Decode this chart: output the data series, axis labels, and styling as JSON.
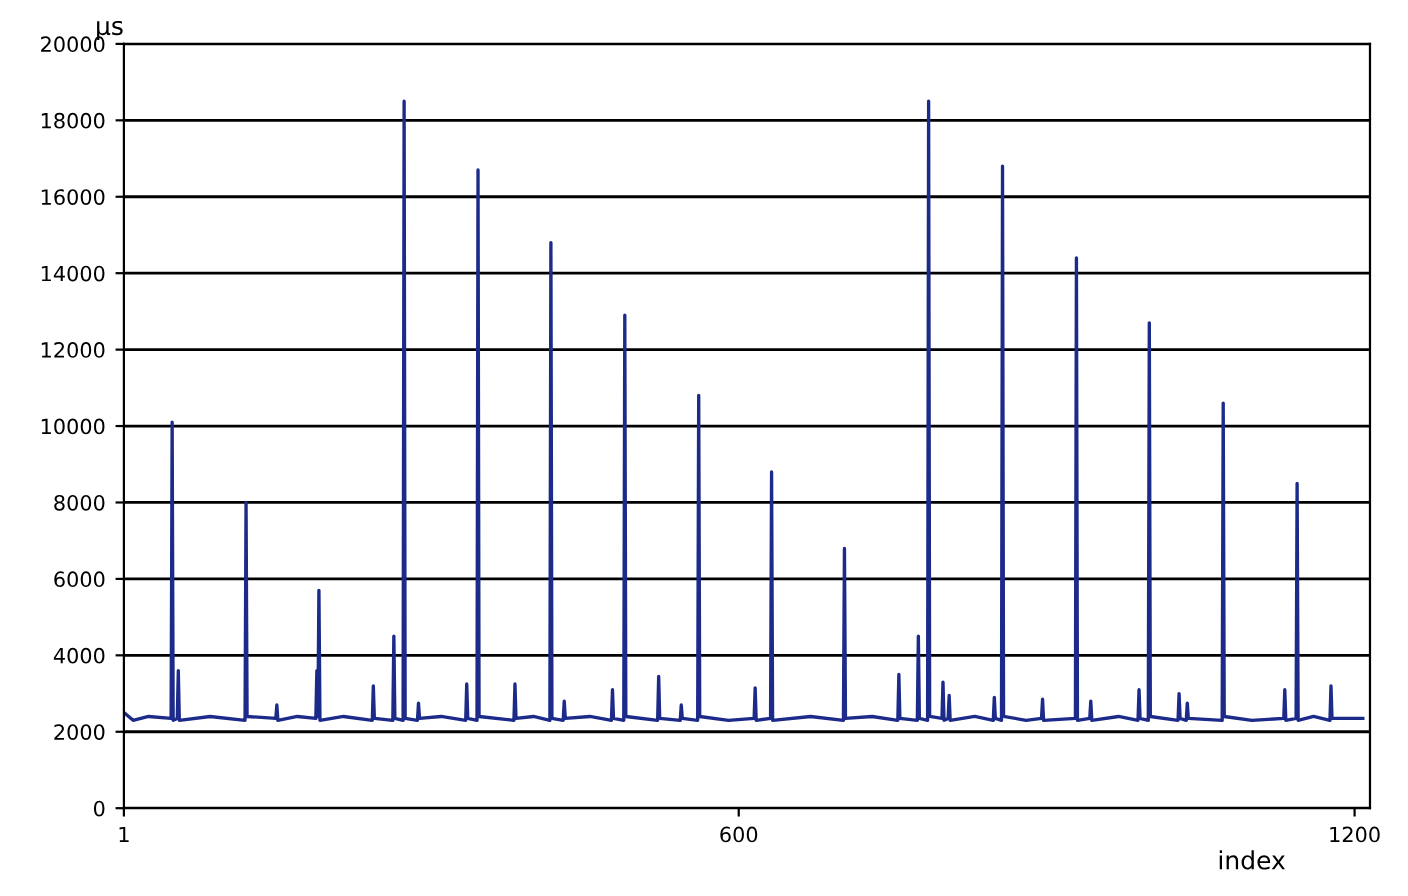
{
  "chart_data": {
    "type": "line",
    "xlabel": "index",
    "ylabel": "µs",
    "xlim": [
      1,
      1215
    ],
    "xticks": [
      1,
      600,
      1200
    ],
    "ylim": [
      0,
      20000
    ],
    "yticks": [
      0,
      2000,
      4000,
      6000,
      8000,
      10000,
      12000,
      14000,
      16000,
      18000,
      20000
    ],
    "grid": "y",
    "marker": "none",
    "line_style": "solid",
    "legend": false,
    "series": [
      {
        "color": "#1c2a8a",
        "x": [
          1,
          10,
          25,
          47,
          48,
          49,
          53,
          54,
          55,
          85,
          119,
          120,
          121,
          149,
          150,
          151,
          170,
          188,
          189,
          190,
          191,
          192,
          215,
          243,
          244,
          245,
          263,
          264,
          265,
          273,
          274,
          275,
          287,
          288,
          289,
          310,
          334,
          335,
          336,
          345,
          346,
          347,
          381,
          382,
          383,
          400,
          416,
          417,
          418,
          429,
          430,
          431,
          455,
          476,
          477,
          478,
          488,
          489,
          490,
          521,
          522,
          523,
          543,
          544,
          545,
          560,
          561,
          562,
          590,
          615,
          616,
          617,
          631,
          632,
          633,
          670,
          702,
          703,
          704,
          730,
          755,
          756,
          757,
          774,
          775,
          776,
          784,
          785,
          786,
          798,
          799,
          800,
          804,
          805,
          806,
          830,
          848,
          849,
          850,
          856,
          857,
          858,
          880,
          895,
          896,
          897,
          928,
          929,
          930,
          942,
          943,
          944,
          970,
          989,
          990,
          991,
          999,
          1000,
          1001,
          1028,
          1029,
          1030,
          1036,
          1037,
          1038,
          1071,
          1072,
          1073,
          1100,
          1131,
          1132,
          1133,
          1143,
          1144,
          1145,
          1160,
          1176,
          1177,
          1178,
          1208
        ],
        "values": [
          2500,
          2300,
          2400,
          2350,
          10100,
          2300,
          2350,
          3600,
          2300,
          2400,
          2300,
          8000,
          2400,
          2350,
          2700,
          2300,
          2400,
          2350,
          3600,
          2400,
          5700,
          2300,
          2400,
          2300,
          3200,
          2350,
          2300,
          4500,
          2350,
          2300,
          18500,
          2350,
          2300,
          2750,
          2350,
          2400,
          2300,
          3250,
          2350,
          2300,
          16700,
          2400,
          2300,
          3250,
          2350,
          2400,
          2300,
          14800,
          2350,
          2300,
          2800,
          2350,
          2400,
          2300,
          3100,
          2350,
          2300,
          12900,
          2400,
          2300,
          3450,
          2350,
          2300,
          2700,
          2350,
          2300,
          10800,
          2400,
          2300,
          2350,
          3150,
          2300,
          2350,
          8800,
          2300,
          2400,
          2300,
          6800,
          2350,
          2400,
          2300,
          3500,
          2350,
          2300,
          4500,
          2350,
          2300,
          18500,
          2400,
          2350,
          3300,
          2300,
          2350,
          2950,
          2300,
          2400,
          2300,
          2900,
          2350,
          2300,
          16800,
          2400,
          2300,
          2350,
          2850,
          2300,
          2350,
          14400,
          2300,
          2350,
          2800,
          2300,
          2400,
          2300,
          3100,
          2350,
          2300,
          12700,
          2400,
          2300,
          3000,
          2350,
          2300,
          2750,
          2350,
          2300,
          10600,
          2400,
          2300,
          2350,
          3100,
          2300,
          2350,
          8500,
          2300,
          2400,
          2300,
          3200,
          2350,
          2350
        ]
      }
    ]
  }
}
